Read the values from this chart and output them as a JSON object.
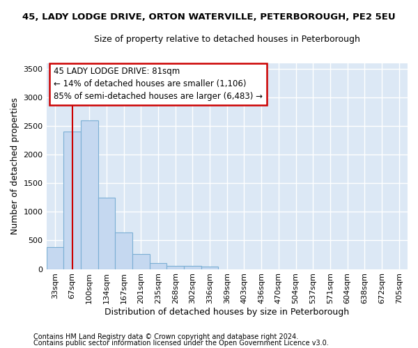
{
  "title_line1": "45, LADY LODGE DRIVE, ORTON WATERVILLE, PETERBOROUGH, PE2 5EU",
  "title_line2": "Size of property relative to detached houses in Peterborough",
  "xlabel": "Distribution of detached houses by size in Peterborough",
  "ylabel": "Number of detached properties",
  "footnote1": "Contains HM Land Registry data © Crown copyright and database right 2024.",
  "footnote2": "Contains public sector information licensed under the Open Government Licence v3.0.",
  "bar_labels": [
    "33sqm",
    "67sqm",
    "100sqm",
    "134sqm",
    "167sqm",
    "201sqm",
    "235sqm",
    "268sqm",
    "302sqm",
    "336sqm",
    "369sqm",
    "403sqm",
    "436sqm",
    "470sqm",
    "504sqm",
    "537sqm",
    "571sqm",
    "604sqm",
    "638sqm",
    "672sqm",
    "705sqm"
  ],
  "bar_values": [
    390,
    2400,
    2600,
    1250,
    640,
    260,
    100,
    60,
    50,
    40,
    0,
    0,
    0,
    0,
    0,
    0,
    0,
    0,
    0,
    0,
    0
  ],
  "bar_color": "#c5d8f0",
  "bar_edge_color": "#7bafd4",
  "fig_bg_color": "#ffffff",
  "ax_bg_color": "#dce8f5",
  "grid_color": "#ffffff",
  "vline_color": "#cc0000",
  "vline_x": 1.0,
  "annotation_line1": "45 LADY LODGE DRIVE: 81sqm",
  "annotation_line2": "← 14% of detached houses are smaller (1,106)",
  "annotation_line3": "85% of semi-detached houses are larger (6,483) →",
  "annotation_box_facecolor": "#ffffff",
  "annotation_box_edgecolor": "#cc0000",
  "ylim": [
    0,
    3600
  ],
  "yticks": [
    0,
    500,
    1000,
    1500,
    2000,
    2500,
    3000,
    3500
  ],
  "title1_fontsize": 9.5,
  "title2_fontsize": 9.0,
  "ylabel_fontsize": 9.0,
  "xlabel_fontsize": 9.0,
  "tick_fontsize": 8.0,
  "annot_fontsize": 8.5,
  "footnote_fontsize": 7.0
}
